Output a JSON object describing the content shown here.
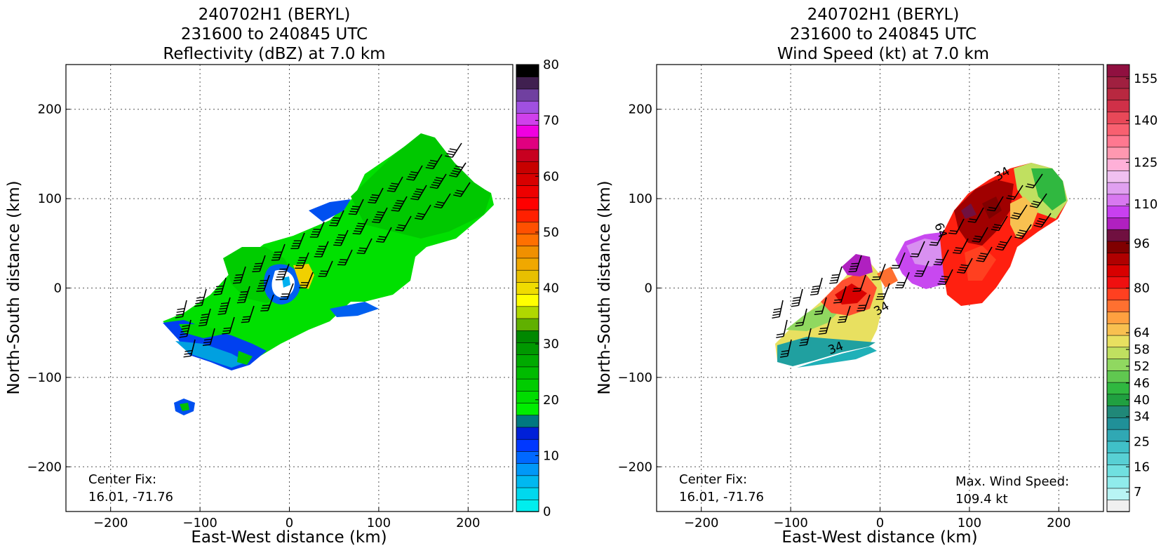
{
  "chart_data": [
    {
      "type": "heatmap",
      "title_lines": [
        "240702H1 (BERYL)",
        "231600 to 240845 UTC",
        "Reflectivity (dBZ) at 7.0 km"
      ],
      "xlabel": "East-West distance (km)",
      "ylabel": "North-South distance (km)",
      "xlim": [
        -250,
        250
      ],
      "ylim": [
        -250,
        250
      ],
      "xticks": [
        -200,
        -100,
        0,
        100,
        200
      ],
      "yticks": [
        -200,
        -100,
        0,
        100,
        200
      ],
      "grid": true,
      "colorbar": {
        "min": 0,
        "max": 80,
        "ticks": [
          "0",
          "10",
          "20",
          "30",
          "40",
          "50",
          "60",
          "70",
          "80"
        ],
        "colors": [
          "#00eeee",
          "#00d8ee",
          "#00b8f0",
          "#0098f8",
          "#0068ff",
          "#0038ff",
          "#0020d8",
          "#007880",
          "#00ee00",
          "#00dd00",
          "#00cc00",
          "#00bb00",
          "#00aa00",
          "#009800",
          "#008800",
          "#60b000",
          "#b0d800",
          "#ffff00",
          "#f0dc00",
          "#e8c000",
          "#f0a800",
          "#f09000",
          "#ff7000",
          "#ff5000",
          "#ff2000",
          "#ff0000",
          "#ee0000",
          "#d80000",
          "#c80000",
          "#c80020",
          "#e00080",
          "#f000e0",
          "#d040ec",
          "#a050e0",
          "#7040a0",
          "#402050",
          "#000000"
        ]
      },
      "annotations": {
        "center_fix_label": "Center Fix:",
        "center_fix_value": "16.01, -71.76"
      }
    },
    {
      "type": "heatmap",
      "title_lines": [
        "240702H1 (BERYL)",
        "231600 to 240845 UTC",
        "Wind Speed (kt) at 7.0 km"
      ],
      "xlabel": "East-West distance (km)",
      "ylabel": "North-South distance (km)",
      "xlim": [
        -250,
        250
      ],
      "ylim": [
        -250,
        250
      ],
      "xticks": [
        -200,
        -100,
        0,
        100,
        200
      ],
      "yticks": [
        -200,
        -100,
        0,
        100,
        200
      ],
      "grid": true,
      "contour_labels": [
        "34",
        "34",
        "34",
        "64"
      ],
      "colorbar": {
        "min": 0,
        "max": 160,
        "ticks": [
          "7",
          "16",
          "25",
          "34",
          "40",
          "46",
          "52",
          "58",
          "64",
          "80",
          "96",
          "110",
          "125",
          "140",
          "155"
        ],
        "colors": [
          "#f0f0f0",
          "#b8f4f4",
          "#90ecec",
          "#70e0e0",
          "#58d0d4",
          "#40c0c8",
          "#30a8b4",
          "#209098",
          "#208878",
          "#20a040",
          "#30b840",
          "#60c850",
          "#90d860",
          "#c0e060",
          "#e8e060",
          "#f8c050",
          "#ffa040",
          "#ff7030",
          "#ff4020",
          "#f01010",
          "#d80000",
          "#b00000",
          "#800000",
          "#701040",
          "#b020c0",
          "#c840f0",
          "#d878f0",
          "#e0a0f0",
          "#f0c0f0",
          "#ffb0d8",
          "#ff98b0",
          "#ff7890",
          "#f86070",
          "#e84858",
          "#d03048",
          "#b82840",
          "#a02040",
          "#901040"
        ]
      },
      "annotations": {
        "center_fix_label": "Center Fix:",
        "center_fix_value": "16.01, -71.76",
        "max_wind_label": "Max. Wind Speed:",
        "max_wind_value": "109.4 kt"
      }
    }
  ]
}
